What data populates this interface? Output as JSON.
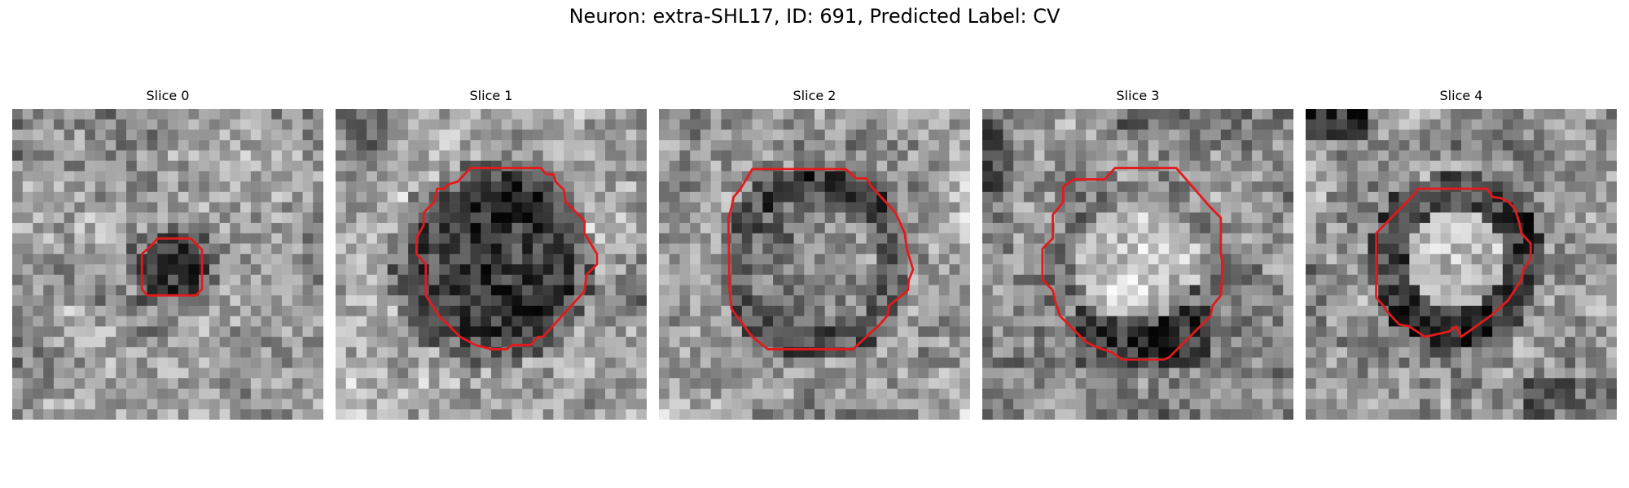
{
  "figure": {
    "title": "Neuron: extra-SHL17, ID: 691, Predicted Label: CV",
    "contour_color": "#e31a1c",
    "colormap": "gray"
  },
  "slices": [
    {
      "title": "Slice 0",
      "pattern": "faint-dark-spot",
      "seed": 17
    },
    {
      "title": "Slice 1",
      "pattern": "dark-disk",
      "seed": 91
    },
    {
      "title": "Slice 2",
      "pattern": "ring-gray",
      "seed": 33
    },
    {
      "title": "Slice 3",
      "pattern": "bright-disk-dark-rim",
      "seed": 57
    },
    {
      "title": "Slice 4",
      "pattern": "bright-disk-dark-ring",
      "seed": 73
    }
  ]
}
